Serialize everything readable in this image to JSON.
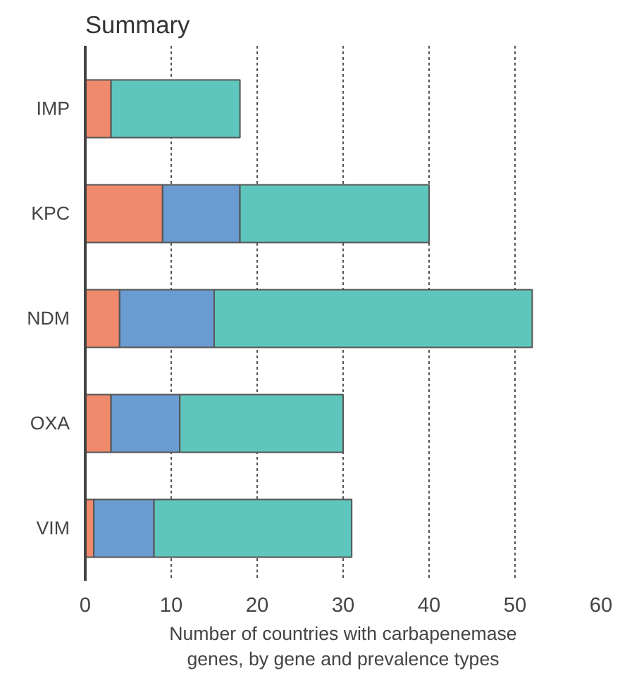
{
  "chart_data": {
    "type": "bar",
    "orientation": "horizontal",
    "stacked": true,
    "title": "Summary",
    "xlabel": "Number of countries with carbapenemase\ngenes, by gene and prevalence types",
    "categories": [
      "IMP",
      "KPC",
      "NDM",
      "OXA",
      "VIM"
    ],
    "series": [
      {
        "color": "#f08a6c",
        "values": [
          3,
          9,
          4,
          3,
          1
        ]
      },
      {
        "color": "#6a9bd1",
        "values": [
          null,
          9,
          11,
          8,
          7
        ]
      },
      {
        "color": "#5fc6bd",
        "values": [
          15,
          22,
          37,
          19,
          23
        ]
      }
    ],
    "xlim": [
      0,
      60
    ],
    "xticks": [
      0,
      10,
      20,
      30,
      40,
      50,
      60
    ],
    "grid": "x",
    "line_style": "dotted"
  }
}
